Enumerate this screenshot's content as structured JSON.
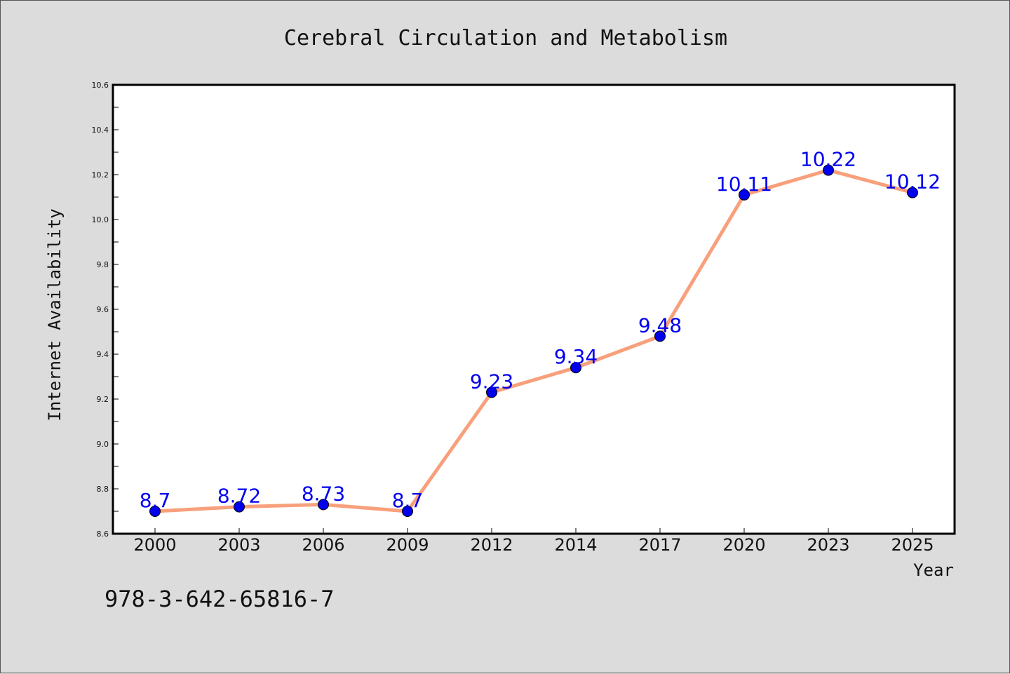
{
  "chart_data": {
    "type": "line",
    "title": "Cerebral Circulation and Metabolism",
    "xlabel": "Year",
    "ylabel": "Internet Availability",
    "categories": [
      "2000",
      "2003",
      "2006",
      "2009",
      "2012",
      "2014",
      "2017",
      "2020",
      "2023",
      "2025"
    ],
    "values": [
      8.7,
      8.72,
      8.73,
      8.7,
      9.23,
      9.34,
      9.48,
      10.11,
      10.22,
      10.12
    ],
    "data_labels": [
      "8.7",
      "8.72",
      "8.73",
      "8.7",
      "9.23",
      "9.34",
      "9.48",
      "10.11",
      "10.22",
      "10.12"
    ],
    "ylim": [
      8.6,
      10.6
    ],
    "yticks": [
      "8.6",
      "8.8",
      "9.0",
      "9.2",
      "9.4",
      "9.6",
      "9.8",
      "10.0",
      "10.2",
      "10.4",
      "10.6"
    ],
    "grid": false,
    "legend": "none",
    "line_color": "#f8a07c",
    "marker_color": "#0000ee",
    "label_color": "#0000ee"
  },
  "footer": {
    "isbn": "978-3-642-65816-7"
  }
}
